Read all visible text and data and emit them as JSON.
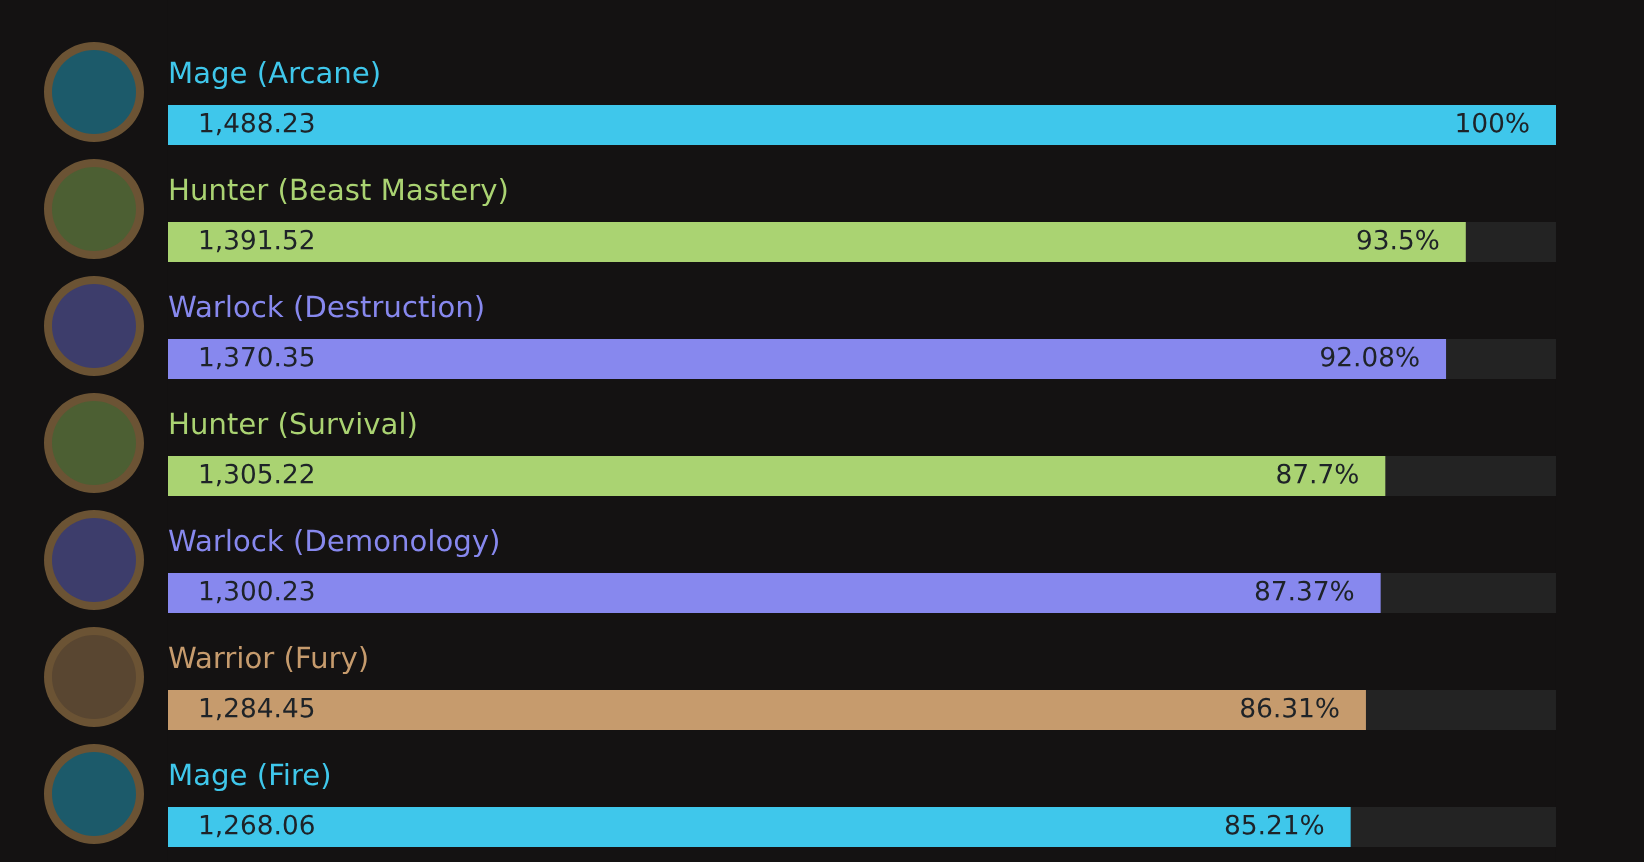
{
  "chart_data": {
    "type": "bar",
    "orientation": "horizontal",
    "categories": [
      "Mage (Arcane)",
      "Hunter (Beast Mastery)",
      "Warlock (Destruction)",
      "Hunter (Survival)",
      "Warlock (Demonology)",
      "Warrior (Fury)",
      "Mage (Fire)"
    ],
    "values": [
      1488.23,
      1391.52,
      1370.35,
      1305.22,
      1300.23,
      1284.45,
      1268.06
    ],
    "colors": [
      "#3fc7eb",
      "#aad372",
      "#8788ee",
      "#aad372",
      "#8788ee",
      "#c69b6d",
      "#3fc7eb"
    ],
    "value_labels": [
      "1,488.23",
      "1,391.52",
      "1,370.35",
      "1,305.22",
      "1,300.23",
      "1,284.45",
      "1,268.06"
    ],
    "annotations": [
      {
        "text": "100%",
        "x": 1488.23,
        "y": "Mage (Arcane)"
      },
      {
        "text": "93.5%",
        "x": 1391.52,
        "y": "Hunter (Beast Mastery)"
      },
      {
        "text": "92.08%",
        "x": 1370.35,
        "y": "Warlock (Destruction)"
      },
      {
        "text": "87.7%",
        "x": 1305.22,
        "y": "Hunter (Survival)"
      },
      {
        "text": "87.37%",
        "x": 1300.23,
        "y": "Warlock (Demonology)"
      },
      {
        "text": "86.31%",
        "x": 1284.45,
        "y": "Warrior (Fury)"
      },
      {
        "text": "85.21%",
        "x": 1268.06,
        "y": "Mage (Fire)"
      }
    ]
  }
}
